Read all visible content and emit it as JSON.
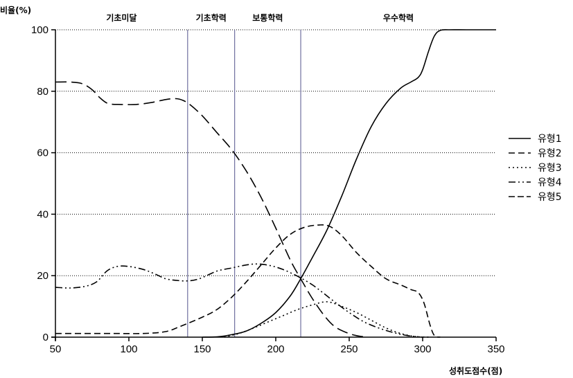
{
  "chart_data": {
    "type": "line",
    "ylabel": "비율(%)",
    "xlabel": "성취도점수(점)",
    "xlim": [
      50,
      350
    ],
    "ylim": [
      0,
      100
    ],
    "x_ticks": [
      "50",
      "100",
      "150",
      "200",
      "250",
      "300",
      "350"
    ],
    "y_ticks": [
      "0",
      "20",
      "40",
      "60",
      "80",
      "100"
    ],
    "grid": "horizontal dotted",
    "legend": "right",
    "cutoffs": [
      140,
      172,
      217
    ],
    "regions": [
      {
        "label": "기초미달",
        "from": 50,
        "to": 140
      },
      {
        "label": "기초학력",
        "from": 140,
        "to": 172
      },
      {
        "label": "보통학력",
        "from": 172,
        "to": 217
      },
      {
        "label": "우수학력",
        "from": 217,
        "to": 350
      }
    ],
    "series": [
      {
        "name": "유형1",
        "dash": "none",
        "points": [
          [
            150,
            0
          ],
          [
            160,
            0.1
          ],
          [
            170,
            0.8
          ],
          [
            180,
            2
          ],
          [
            190,
            4.5
          ],
          [
            200,
            8
          ],
          [
            210,
            13.5
          ],
          [
            217,
            19
          ],
          [
            225,
            26
          ],
          [
            235,
            35
          ],
          [
            245,
            46
          ],
          [
            255,
            58
          ],
          [
            265,
            68.5
          ],
          [
            275,
            76
          ],
          [
            285,
            81
          ],
          [
            292,
            83
          ],
          [
            297,
            84.5
          ],
          [
            300,
            87
          ],
          [
            304,
            93
          ],
          [
            308,
            98
          ],
          [
            312,
            99.8
          ],
          [
            318,
            100
          ],
          [
            330,
            100
          ],
          [
            350,
            100
          ]
        ]
      },
      {
        "name": "유형2",
        "dash": "9 5",
        "points": [
          [
            50,
            1.2
          ],
          [
            70,
            1.2
          ],
          [
            90,
            1.2
          ],
          [
            110,
            1.2
          ],
          [
            125,
            1.8
          ],
          [
            135,
            3.5
          ],
          [
            150,
            6.5
          ],
          [
            160,
            9
          ],
          [
            170,
            13
          ],
          [
            180,
            18
          ],
          [
            190,
            23.5
          ],
          [
            200,
            29
          ],
          [
            210,
            33.5
          ],
          [
            220,
            35.8
          ],
          [
            230,
            36.5
          ],
          [
            237,
            36
          ],
          [
            245,
            33
          ],
          [
            255,
            27.5
          ],
          [
            265,
            23
          ],
          [
            275,
            19
          ],
          [
            285,
            17
          ],
          [
            292,
            15.5
          ],
          [
            297,
            14.5
          ],
          [
            301,
            11
          ],
          [
            305,
            4
          ],
          [
            308,
            0.5
          ],
          [
            312,
            0
          ]
        ]
      },
      {
        "name": "유형3",
        "dash": "2 4",
        "points": [
          [
            165,
            0
          ],
          [
            175,
            1.2
          ],
          [
            185,
            3
          ],
          [
            195,
            5
          ],
          [
            205,
            7
          ],
          [
            215,
            9
          ],
          [
            225,
            10.5
          ],
          [
            235,
            11.5
          ],
          [
            245,
            10
          ],
          [
            255,
            8
          ],
          [
            265,
            5.5
          ],
          [
            275,
            3
          ],
          [
            285,
            1.2
          ],
          [
            295,
            0.2
          ],
          [
            305,
            0
          ]
        ]
      },
      {
        "name": "유형4",
        "dash": "10 4 2 4 2 4",
        "points": [
          [
            50,
            16.2
          ],
          [
            60,
            16
          ],
          [
            70,
            16.5
          ],
          [
            78,
            18
          ],
          [
            85,
            21.5
          ],
          [
            92,
            23
          ],
          [
            100,
            23
          ],
          [
            110,
            22
          ],
          [
            118,
            20.5
          ],
          [
            125,
            19
          ],
          [
            132,
            18.5
          ],
          [
            140,
            18.3
          ],
          [
            148,
            19
          ],
          [
            160,
            21.5
          ],
          [
            170,
            22.5
          ],
          [
            180,
            23.5
          ],
          [
            188,
            23.8
          ],
          [
            197,
            23.2
          ],
          [
            205,
            22
          ],
          [
            212,
            20.5
          ],
          [
            218,
            19
          ],
          [
            225,
            17
          ],
          [
            232,
            14.5
          ],
          [
            240,
            11.5
          ],
          [
            250,
            8
          ],
          [
            260,
            5
          ],
          [
            270,
            3
          ],
          [
            280,
            1.5
          ],
          [
            290,
            0.5
          ],
          [
            300,
            0
          ]
        ]
      },
      {
        "name": "유형5",
        "dash": "16 7",
        "points": [
          [
            50,
            83
          ],
          [
            60,
            83
          ],
          [
            68,
            82.5
          ],
          [
            75,
            80.5
          ],
          [
            80,
            78
          ],
          [
            86,
            76
          ],
          [
            95,
            75.7
          ],
          [
            105,
            75.7
          ],
          [
            115,
            76.3
          ],
          [
            125,
            77.3
          ],
          [
            132,
            77.6
          ],
          [
            137,
            77
          ],
          [
            142,
            75.5
          ],
          [
            150,
            72
          ],
          [
            160,
            66.5
          ],
          [
            170,
            61
          ],
          [
            180,
            54
          ],
          [
            190,
            45.5
          ],
          [
            200,
            35.5
          ],
          [
            210,
            25
          ],
          [
            217,
            19
          ],
          [
            225,
            12.5
          ],
          [
            233,
            7
          ],
          [
            240,
            3.5
          ],
          [
            248,
            1.5
          ],
          [
            255,
            0.5
          ],
          [
            262,
            0
          ]
        ]
      }
    ]
  }
}
